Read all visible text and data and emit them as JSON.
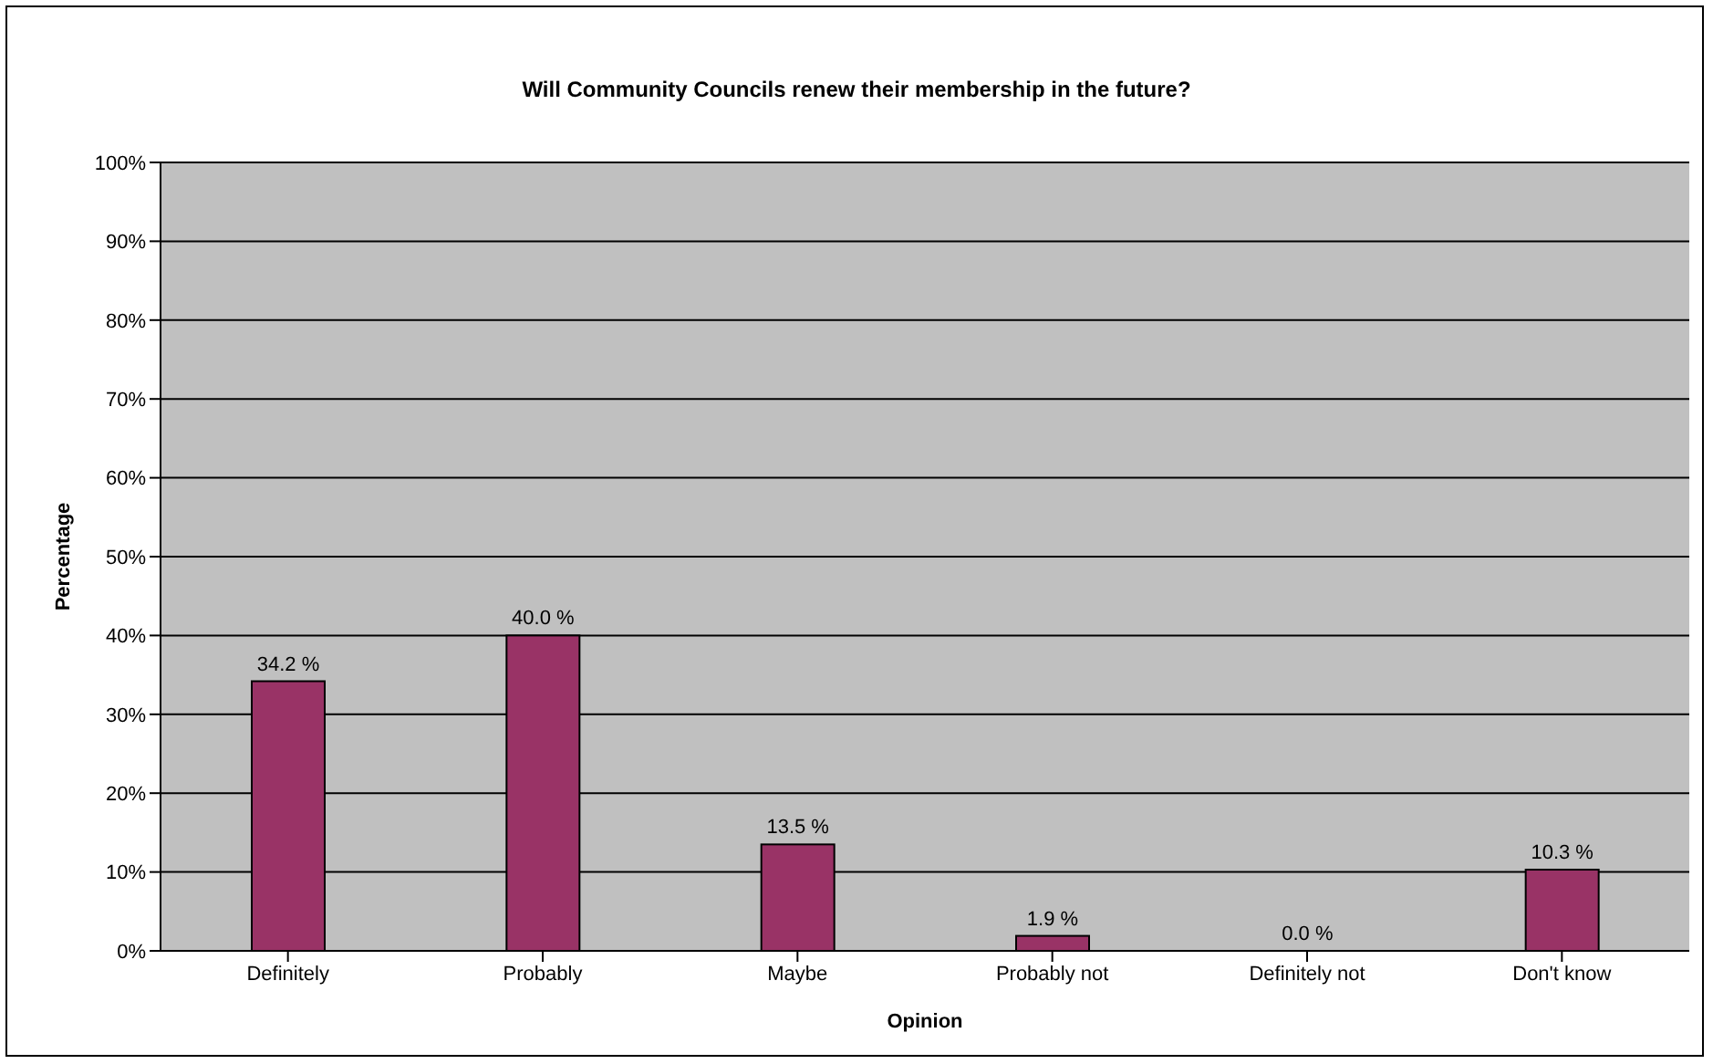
{
  "chart_data": {
    "type": "bar",
    "title": "Will Community Councils renew their membership in the future?",
    "xlabel": "Opinion",
    "ylabel": "Percentage",
    "categories": [
      "Definitely",
      "Probably",
      "Maybe",
      "Probably not",
      "Definitely not",
      "Don't know"
    ],
    "values": [
      34.2,
      40.0,
      13.5,
      1.9,
      0.0,
      10.3
    ],
    "value_labels": [
      "34.2 %",
      "40.0 %",
      "13.5 %",
      "1.9 %",
      "0.0 %",
      "10.3 %"
    ],
    "color": "#993366",
    "ylim": [
      0,
      100
    ],
    "yticks": [
      {
        "value": 0,
        "label": "0%"
      },
      {
        "value": 10,
        "label": "10%"
      },
      {
        "value": 20,
        "label": "20%"
      },
      {
        "value": 30,
        "label": "30%"
      },
      {
        "value": 40,
        "label": "40%"
      },
      {
        "value": 50,
        "label": "50%"
      },
      {
        "value": 60,
        "label": "60%"
      },
      {
        "value": 70,
        "label": "70%"
      },
      {
        "value": 80,
        "label": "80%"
      },
      {
        "value": 90,
        "label": "90%"
      },
      {
        "value": 100,
        "label": "100%"
      }
    ],
    "grid": "y",
    "legend": false
  }
}
